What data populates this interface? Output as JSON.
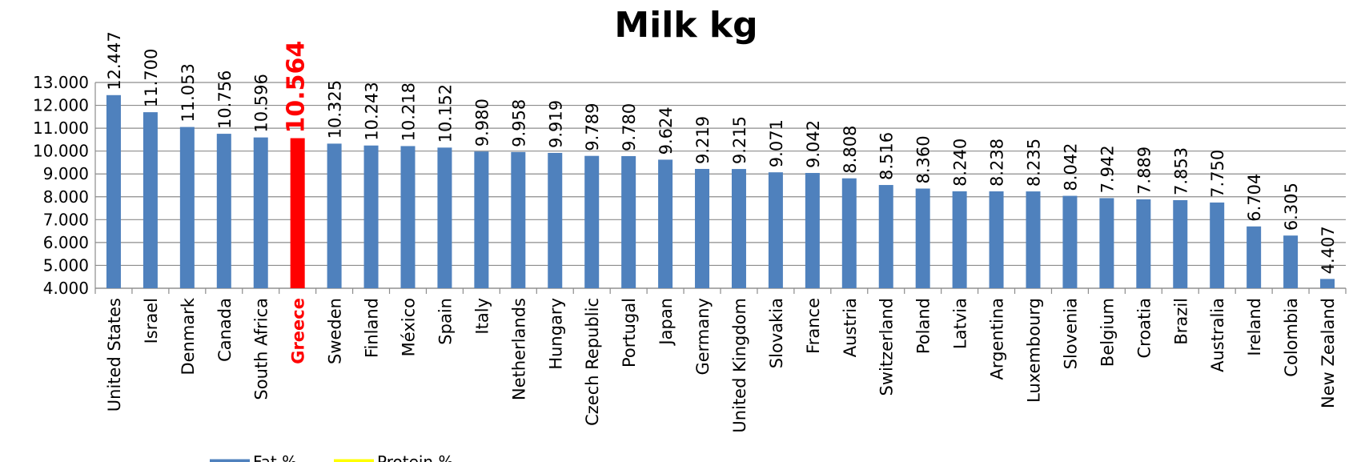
{
  "chart_data": {
    "type": "bar",
    "title": "Milk kg",
    "categories": [
      "United States",
      "Israel",
      "Denmark",
      "Canada",
      "South Africa",
      "Greece",
      "Sweden",
      "Finland",
      "México",
      "Spain",
      "Italy",
      "Netherlands",
      "Hungary",
      "Czech Republic",
      "Portugal",
      "Japan",
      "Germany",
      "United Kingdom",
      "Slovakia",
      "France",
      "Austria",
      "Switzerland",
      "Poland",
      "Latvia",
      "Argentina",
      "Luxembourg",
      "Slovenia",
      "Belgium",
      "Croatia",
      "Brazil",
      "Australia",
      "Ireland",
      "Colombia",
      "New Zealand"
    ],
    "values": [
      12447,
      11700,
      11053,
      10756,
      10596,
      10564,
      10325,
      10243,
      10218,
      10152,
      9980,
      9958,
      9919,
      9789,
      9780,
      9624,
      9219,
      9215,
      9071,
      9042,
      8808,
      8516,
      8360,
      8240,
      8238,
      8235,
      8042,
      7942,
      7889,
      7853,
      7750,
      6704,
      6305,
      4407
    ],
    "value_labels": [
      "12.447",
      "11.700",
      "11.053",
      "10.756",
      "10.596",
      "10.564",
      "10.325",
      "10.243",
      "10.218",
      "10.152",
      "9.980",
      "9.958",
      "9.919",
      "9.789",
      "9.780",
      "9.624",
      "9.219",
      "9.215",
      "9.071",
      "9.042",
      "8.808",
      "8.516",
      "8.360",
      "8.240",
      "8.238",
      "8.235",
      "8.042",
      "7.942",
      "7.889",
      "7.853",
      "7.750",
      "6.704",
      "6.305",
      "4.407"
    ],
    "colors": [
      "#4f81bd",
      "#4f81bd",
      "#4f81bd",
      "#4f81bd",
      "#4f81bd",
      "#ff0000",
      "#4f81bd",
      "#4f81bd",
      "#4f81bd",
      "#4f81bd",
      "#4f81bd",
      "#4f81bd",
      "#4f81bd",
      "#4f81bd",
      "#4f81bd",
      "#4f81bd",
      "#4f81bd",
      "#4f81bd",
      "#4f81bd",
      "#4f81bd",
      "#4f81bd",
      "#4f81bd",
      "#4f81bd",
      "#4f81bd",
      "#4f81bd",
      "#4f81bd",
      "#4f81bd",
      "#4f81bd",
      "#4f81bd",
      "#4f81bd",
      "#4f81bd",
      "#4f81bd",
      "#4f81bd",
      "#4f81bd"
    ],
    "ylim": [
      4000,
      13000
    ],
    "yticks": [
      {
        "value": 4000,
        "label": "4.000"
      },
      {
        "value": 5000,
        "label": "5.000"
      },
      {
        "value": 6000,
        "label": "6.000"
      },
      {
        "value": 7000,
        "label": "7.000"
      },
      {
        "value": 8000,
        "label": "8.000"
      },
      {
        "value": 9000,
        "label": "9.000"
      },
      {
        "value": 10000,
        "label": "10.000"
      },
      {
        "value": 11000,
        "label": "11.000"
      },
      {
        "value": 12000,
        "label": "12.000"
      },
      {
        "value": 13000,
        "label": "13.000"
      }
    ],
    "grid": true,
    "legend": [
      {
        "name": "Fat %",
        "color": "#4f81bd"
      },
      {
        "name": "Protein %",
        "color": "#ffff00"
      }
    ]
  }
}
